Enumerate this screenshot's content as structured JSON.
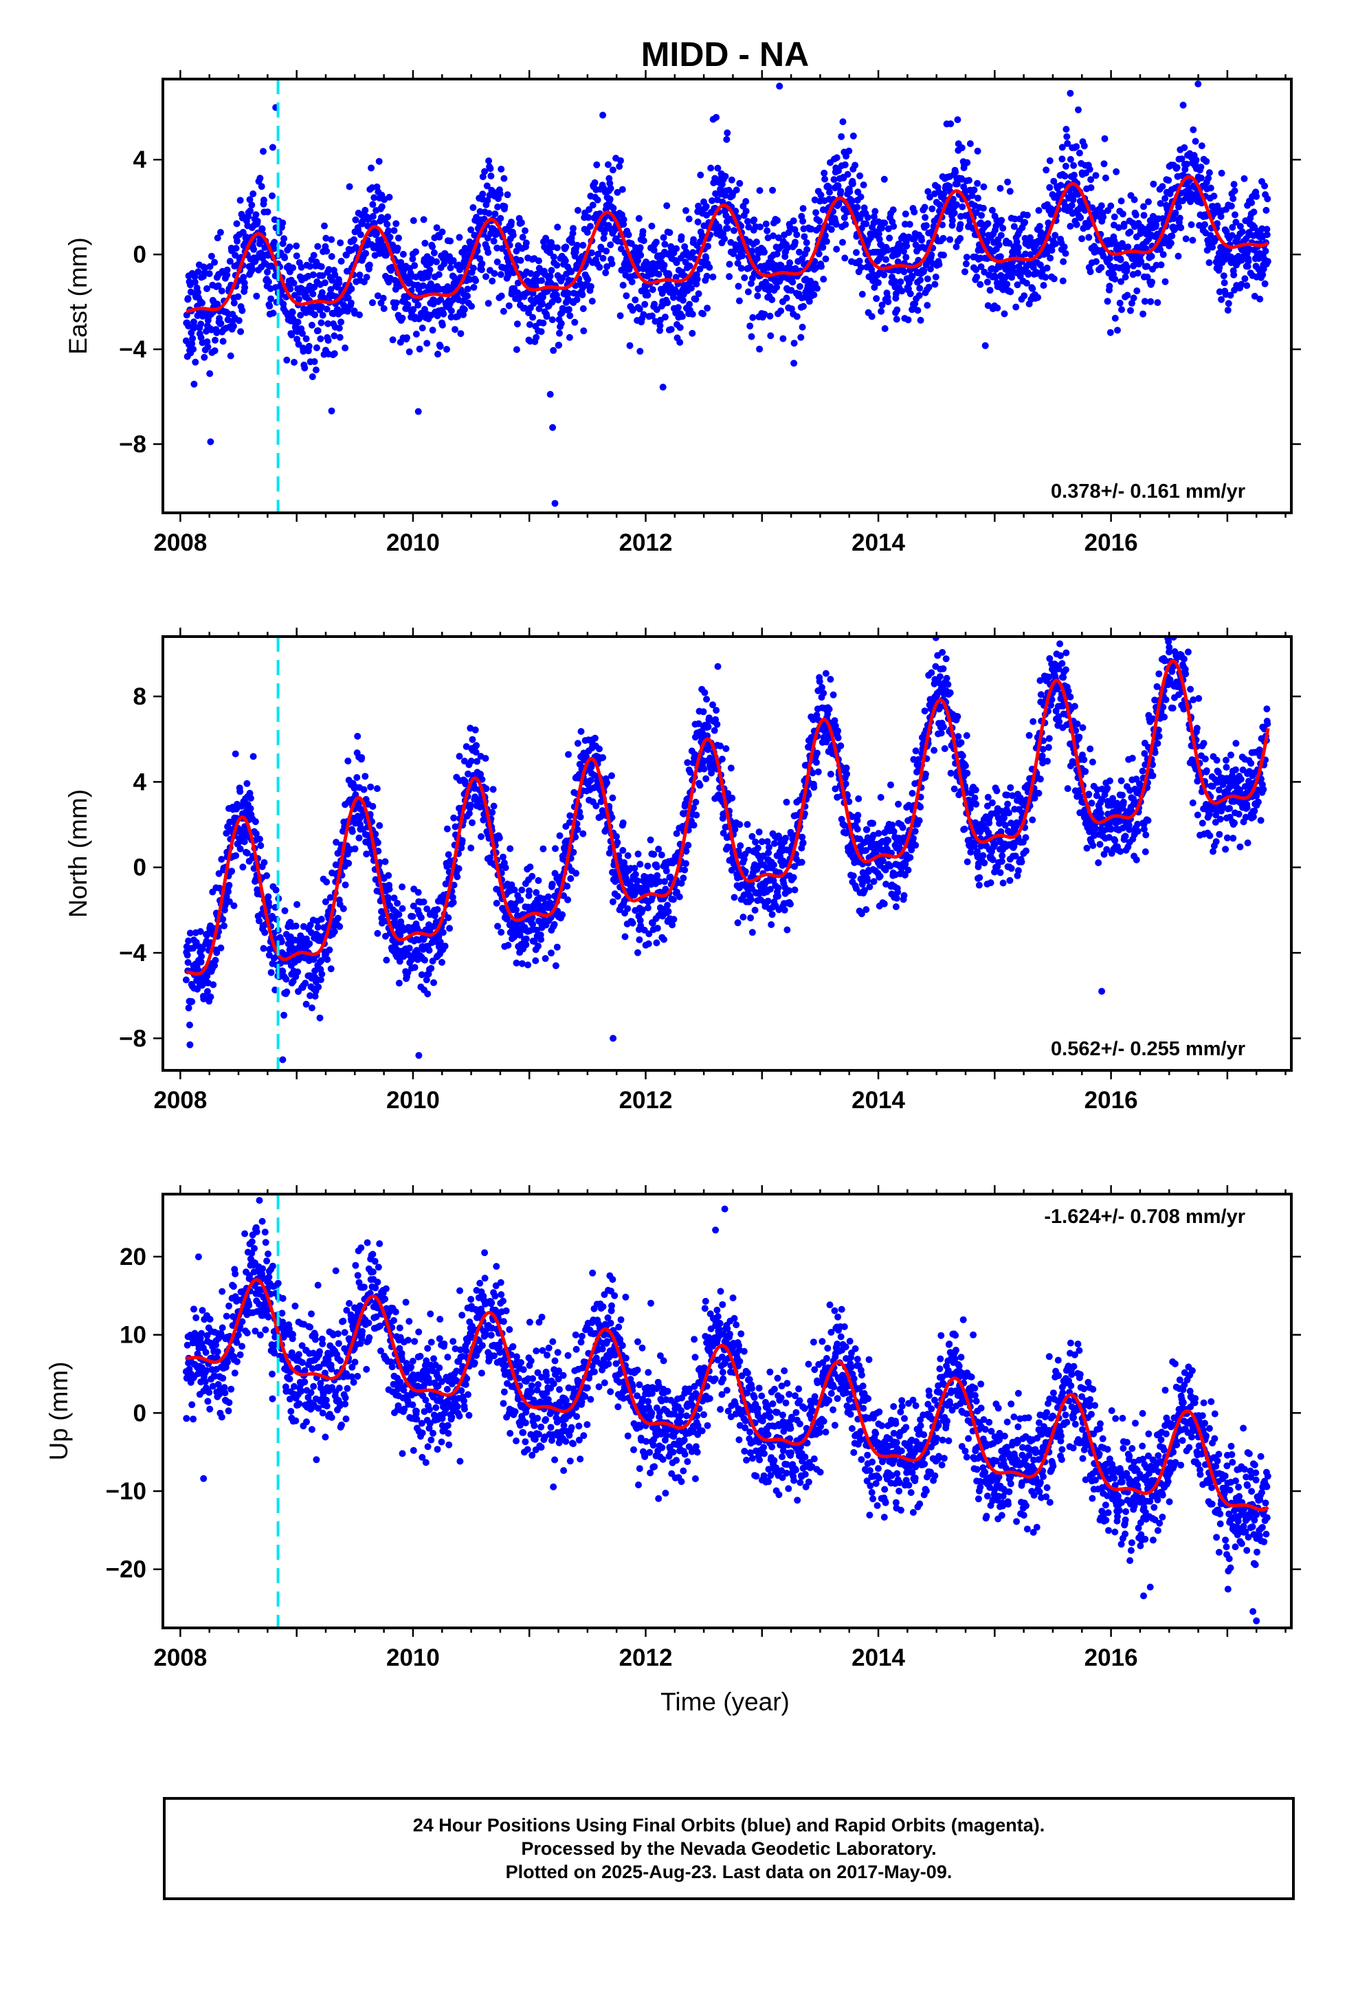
{
  "title": "MIDD - NA",
  "xlabel": "Time (year)",
  "footer": {
    "line1": "24 Hour Positions Using Final Orbits (blue) and Rapid Orbits (magenta).",
    "line2": "Processed by the Nevada Geodetic Laboratory.",
    "line3": "Plotted on 2025-Aug-23. Last data on 2017-May-09."
  },
  "colors": {
    "points": "#0000ff",
    "fit": "#ff0000",
    "event_line": "#00e5ee",
    "frame": "#000000"
  },
  "chart_data": [
    {
      "type": "scatter",
      "ylabel": "East (mm)",
      "rate_label": "0.378+/- 0.161 mm/yr",
      "xlim": [
        2007.85,
        2017.55
      ],
      "ylim": [
        -10.9,
        7.4
      ],
      "xticks": [
        2008,
        2010,
        2012,
        2014,
        2016
      ],
      "yticks": [
        -8,
        -4,
        0,
        4
      ],
      "event_line_x": 2008.84,
      "data_range": [
        2008.05,
        2017.35
      ],
      "fit_anchor": [
        [
          2008.05,
          -2.4
        ],
        [
          2017.35,
          0.4
        ]
      ],
      "amplitude": 1.5,
      "peak_phase": 0.67,
      "noise": 1.2,
      "outliers": [
        [
          2008.26,
          -7.9
        ],
        [
          2009.3,
          -6.6
        ],
        [
          2011.18,
          -5.9
        ],
        [
          2011.2,
          -7.3
        ],
        [
          2011.22,
          -10.5
        ],
        [
          2013.15,
          7.1
        ],
        [
          2008.82,
          6.2
        ],
        [
          2015.65,
          6.8
        ],
        [
          2016.62,
          6.3
        ],
        [
          2012.58,
          5.7
        ]
      ]
    },
    {
      "type": "scatter",
      "ylabel": "North (mm)",
      "rate_label": "0.562+/- 0.255 mm/yr",
      "xlim": [
        2007.85,
        2017.55
      ],
      "ylim": [
        -9.5,
        10.8
      ],
      "xticks": [
        2008,
        2010,
        2012,
        2014,
        2016
      ],
      "yticks": [
        -8,
        -4,
        0,
        4,
        8
      ],
      "event_line_x": 2008.84,
      "data_range": [
        2008.05,
        2017.35
      ],
      "fit_anchor": [
        [
          2008.05,
          -4.9
        ],
        [
          2017.35,
          3.6
        ]
      ],
      "amplitude": 3.4,
      "peak_phase": 0.53,
      "noise": 1.1,
      "outliers": [
        [
          2012.62,
          9.4
        ],
        [
          2016.5,
          10.3
        ],
        [
          2008.88,
          -9.0
        ],
        [
          2010.05,
          -8.8
        ],
        [
          2011.72,
          -8.0
        ],
        [
          2015.92,
          -5.8
        ]
      ]
    },
    {
      "type": "scatter",
      "ylabel": "Up (mm)",
      "rate_label": "-1.624+/- 0.708 mm/yr",
      "xlim": [
        2007.85,
        2017.55
      ],
      "ylim": [
        -27.5,
        28.0
      ],
      "xticks": [
        2008,
        2010,
        2012,
        2014,
        2016
      ],
      "yticks": [
        -20,
        -10,
        0,
        10,
        20
      ],
      "event_line_x": 2008.84,
      "data_range": [
        2008.05,
        2017.35
      ],
      "fit_anchor": [
        [
          2008.05,
          7.0
        ],
        [
          2017.35,
          -12.5
        ]
      ],
      "amplitude": 5.5,
      "peak_phase": 0.66,
      "noise": 3.6,
      "outliers": [
        [
          2008.68,
          27.2
        ],
        [
          2012.68,
          26.1
        ],
        [
          2012.6,
          23.4
        ],
        [
          2017.25,
          -26.6
        ],
        [
          2017.22,
          -25.4
        ],
        [
          2016.28,
          -23.4
        ],
        [
          2008.2,
          -8.4
        ]
      ]
    }
  ]
}
